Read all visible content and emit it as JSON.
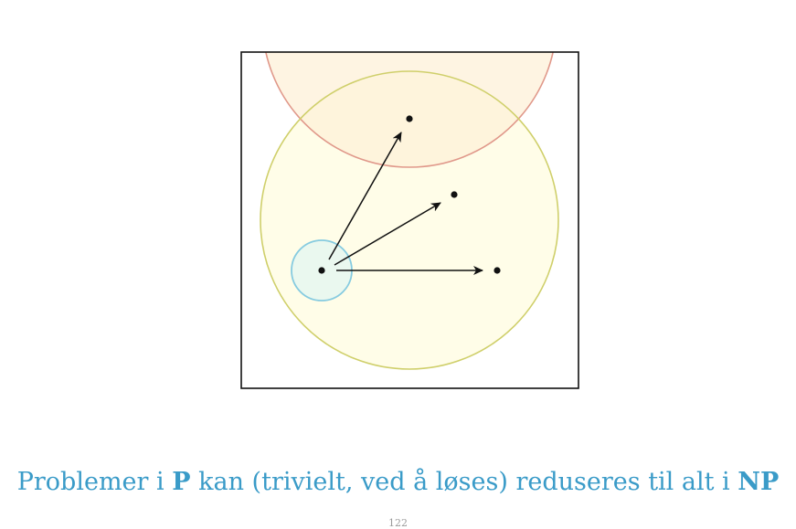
{
  "caption": {
    "part1": "Problemer i ",
    "class_p": "P",
    "part2": " kan (trivielt, ved å løses) reduseres til alt i ",
    "class_np": "NP"
  },
  "page_number": "122",
  "colors": {
    "caption": "#3a9bc8",
    "np_circle_stroke": "#cfcf6a",
    "np_circle_fill": "#fffde8",
    "hard_circle_stroke": "#e0988a",
    "hard_circle_fill": "#fdf0d8",
    "p_circle_stroke": "#86cbe0",
    "p_circle_fill": "#eaf8ef",
    "frame": "#111111",
    "arrow": "#111111"
  }
}
